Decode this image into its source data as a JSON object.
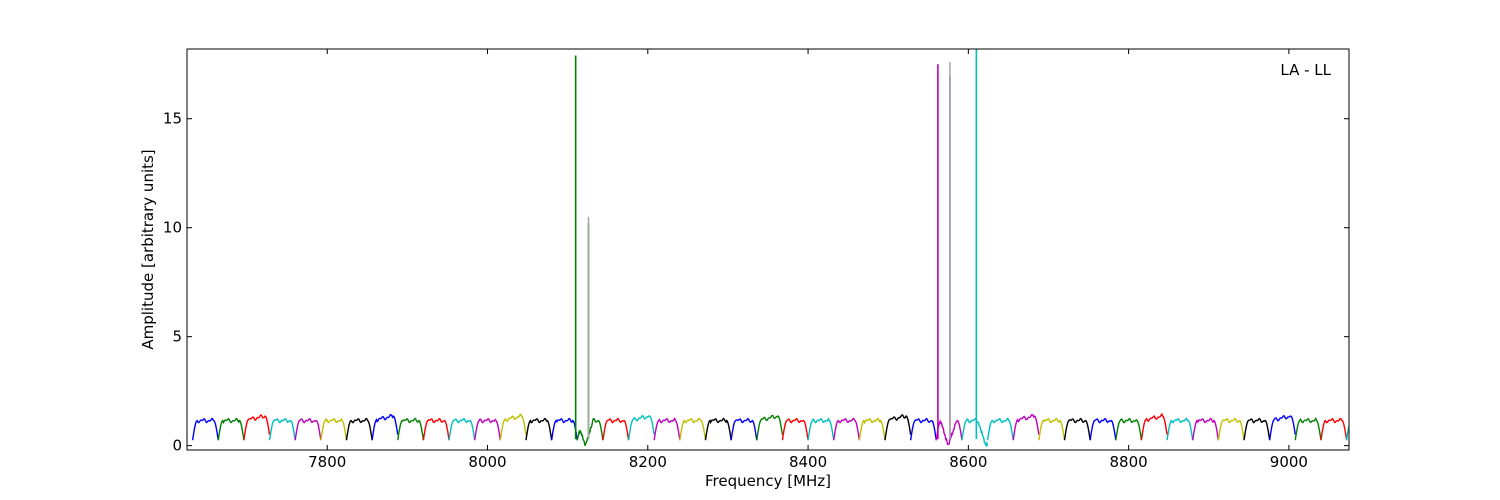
{
  "chart_data": {
    "type": "line",
    "title": "",
    "xlabel": "Frequency [MHz]",
    "ylabel": "Amplitude [arbitrary units]",
    "annotation": "LA - LL",
    "xlim": [
      7625,
      9075
    ],
    "ylim": [
      -0.2,
      18.2
    ],
    "xticks": [
      7800,
      8000,
      8200,
      8400,
      8600,
      8800,
      9000
    ],
    "yticks": [
      0,
      5,
      10,
      15
    ],
    "grid": false,
    "legend": "none",
    "band_start": 7632,
    "band_width": 32,
    "band_colors": [
      "#0000ff",
      "#008000",
      "#ff0000",
      "#00bfbf",
      "#bf00bf",
      "#bfbf00",
      "#000000"
    ],
    "band_shape": {
      "low": 0.25,
      "high": 1.15
    },
    "spikes": [
      {
        "x": 8110,
        "peak": 17.9,
        "color": "#008000"
      },
      {
        "x": 8126,
        "peak": 10.2,
        "color": "#008000"
      },
      {
        "x": 8126,
        "peak": 10.5,
        "color": "#aaaaaa"
      },
      {
        "x": 8562,
        "peak": 17.5,
        "color": "#bf00bf"
      },
      {
        "x": 8577,
        "peak": 17.0,
        "color": "#bf00bf"
      },
      {
        "x": 8577,
        "peak": 17.6,
        "color": "#aaaaaa"
      },
      {
        "x": 8610,
        "peak": 18.2,
        "color": "#00bfbf"
      }
    ],
    "dips": [
      {
        "x": 8122,
        "color": "#008000"
      },
      {
        "x": 8575,
        "color": "#bf00bf"
      },
      {
        "x": 8622,
        "color": "#00bfbf"
      }
    ]
  }
}
